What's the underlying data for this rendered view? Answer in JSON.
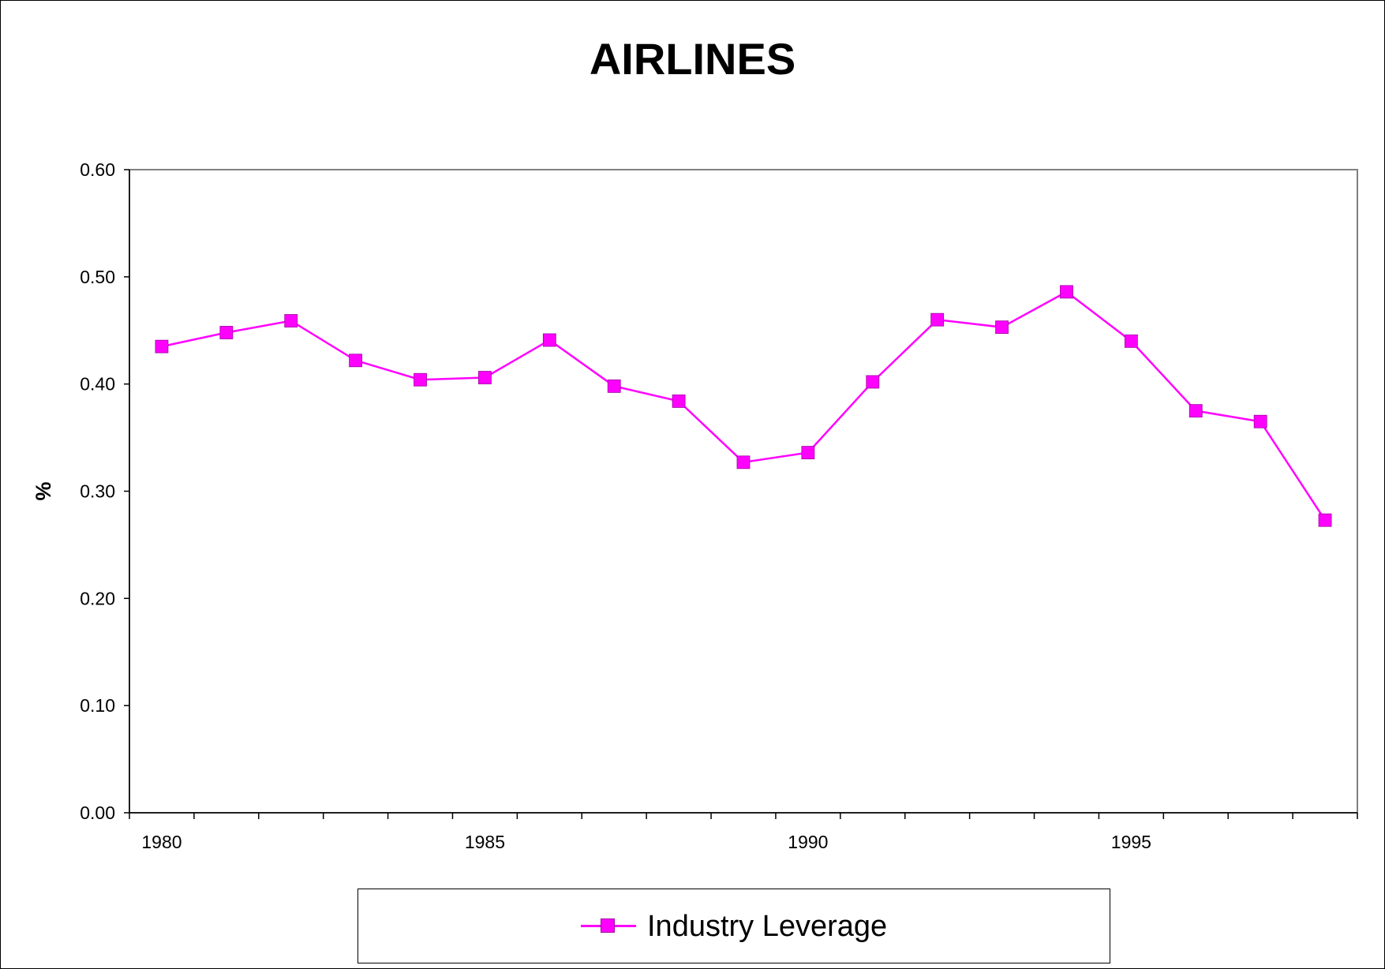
{
  "colors": {
    "series": "#ff00ff",
    "axis": "#000000",
    "plot_border": "#808080"
  },
  "chart_data": {
    "type": "line",
    "title": "AIRLINES",
    "xlabel": "",
    "ylabel": "%",
    "x": [
      1980,
      1981,
      1982,
      1983,
      1984,
      1985,
      1986,
      1987,
      1988,
      1989,
      1990,
      1991,
      1992,
      1993,
      1994,
      1995,
      1996,
      1997,
      1998
    ],
    "x_tick_labels": [
      "1980",
      "1985",
      "1990",
      "1995"
    ],
    "y_tick_labels": [
      "0.00",
      "0.10",
      "0.20",
      "0.30",
      "0.40",
      "0.50",
      "0.60"
    ],
    "ylim": [
      0,
      0.6
    ],
    "grid": false,
    "legend_position": "bottom-center",
    "series": [
      {
        "name": "Industry Leverage",
        "marker": "square",
        "values": [
          0.435,
          0.448,
          0.459,
          0.422,
          0.404,
          0.406,
          0.441,
          0.398,
          0.384,
          0.327,
          0.336,
          0.402,
          0.46,
          0.453,
          0.486,
          0.44,
          0.375,
          0.365,
          0.273
        ]
      }
    ]
  }
}
